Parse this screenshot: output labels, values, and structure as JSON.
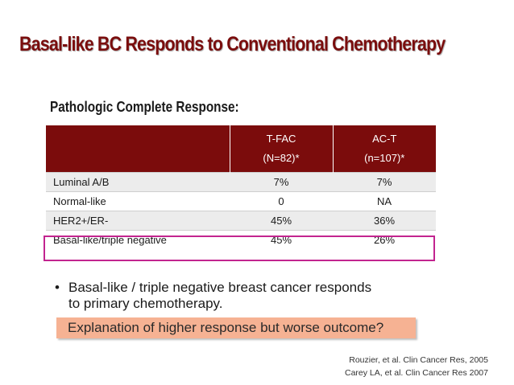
{
  "title": "Basal-like BC Responds to Conventional Chemotherapy",
  "section_heading": "Pathologic Complete Response:",
  "table": {
    "header": {
      "col1": "",
      "col2_line1": "T-FAC",
      "col2_line2": "(N=82)*",
      "col3_line1": "AC-T",
      "col3_line2": "(n=107)*"
    },
    "rows": [
      {
        "label": "Luminal A/B",
        "tfac": "7%",
        "act": "7%"
      },
      {
        "label": "Normal-like",
        "tfac": "0",
        "act": "NA"
      },
      {
        "label": "HER2+/ER-",
        "tfac": "45%",
        "act": "36%"
      },
      {
        "label": "Basal-like/triple negative",
        "tfac": "45%",
        "act": "26%"
      }
    ],
    "highlighted_row": "Basal-like/triple negative"
  },
  "bullet": {
    "glyph": "•",
    "text_line1": "Basal-like / triple negative breast cancer responds",
    "text_line2": "to primary chemotherapy."
  },
  "callout": "Explanation of higher response but worse outcome?",
  "references": [
    "Rouzier, et al. Clin Cancer Res, 2005",
    "Carey LA, et al. Clin Cancer Res 2007"
  ],
  "colors": {
    "title": "#7a0d0d",
    "table_header_bg": "#7b0c0c",
    "highlight_border": "#c2248f",
    "callout_bg": "#f6b293"
  }
}
